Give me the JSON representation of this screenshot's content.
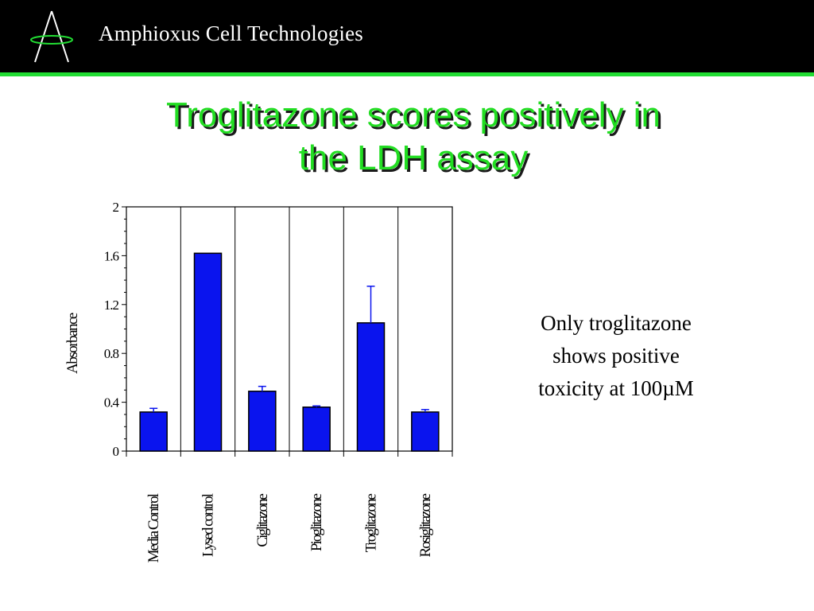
{
  "header": {
    "company": "Amphioxus Cell Technologies",
    "logo_icon": "amphioxus-logo",
    "background": "#000000",
    "accent_line": "#22dd33"
  },
  "slide": {
    "title_line1": "Troglitazone scores positively in",
    "title_line2": "the LDH assay",
    "title_color": "#22dd22",
    "note_line1": "Only troglitazone",
    "note_line2": "shows positive",
    "note_line3": "toxicity at 100µM"
  },
  "chart_data": {
    "type": "bar",
    "categories": [
      "Media Control",
      "Lysed control",
      "Ciglitazone",
      "Pioglitazone",
      "Troglitazone",
      "Rosiglitazone"
    ],
    "values": [
      0.32,
      1.62,
      0.49,
      0.36,
      1.05,
      0.32
    ],
    "error_plus": [
      0.03,
      0.0,
      0.04,
      0.01,
      0.3,
      0.02
    ],
    "ylabel": "Absorbance",
    "xlabel": "",
    "ylim": [
      0,
      2
    ],
    "yticks": [
      0,
      0.4,
      0.8,
      1.2,
      1.6,
      2
    ],
    "ytick_labels": [
      "0",
      "0.4",
      "0.8",
      "1.2",
      "1.6",
      "2"
    ],
    "bar_color": "#0a14ee",
    "grid": "vertical",
    "error_bars": true
  }
}
